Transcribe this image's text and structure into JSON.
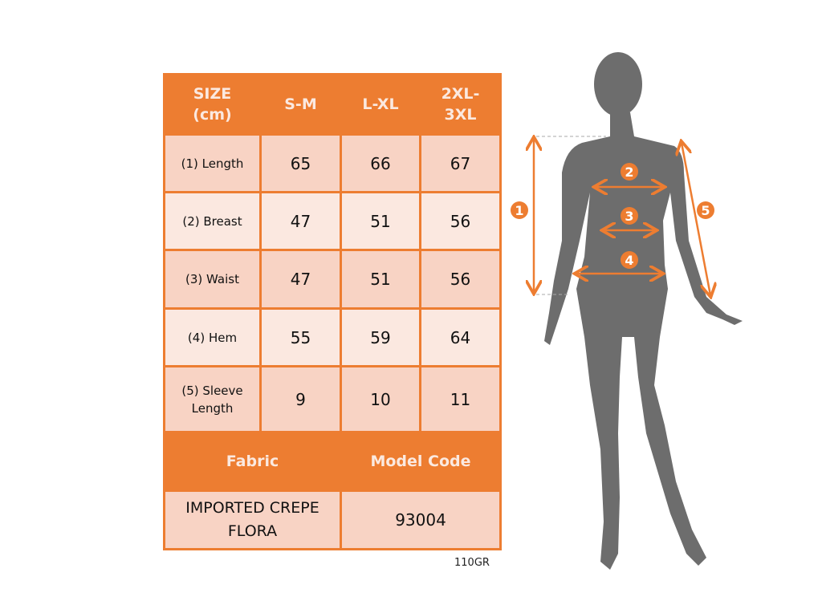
{
  "size_table": {
    "header": [
      "SIZE (cm)",
      "S-M",
      "L-XL",
      "2XL-3XL"
    ],
    "rows": [
      {
        "label": "(1) Length",
        "values": [
          "65",
          "66",
          "67"
        ]
      },
      {
        "label": "(2) Breast",
        "values": [
          "47",
          "51",
          "56"
        ]
      },
      {
        "label": "(3) Waist",
        "values": [
          "47",
          "51",
          "56"
        ]
      },
      {
        "label": "(4) Hem",
        "values": [
          "55",
          "59",
          "64"
        ]
      },
      {
        "label": "(5) Sleeve Length",
        "values": [
          "9",
          "10",
          "11"
        ]
      }
    ],
    "fabric_label": "Fabric",
    "model_code_label": "Model Code",
    "fabric_value": "IMPORTED CREPE FLORA",
    "model_code_value": "93004"
  },
  "note": "110GR",
  "figure": {
    "markers": [
      "1",
      "2",
      "3",
      "4",
      "5"
    ]
  },
  "colors": {
    "accent": "#ed7d31",
    "silhouette": "#6d6d6d",
    "row_dark": "#f8d3c4",
    "row_light": "#fbe8e0"
  }
}
